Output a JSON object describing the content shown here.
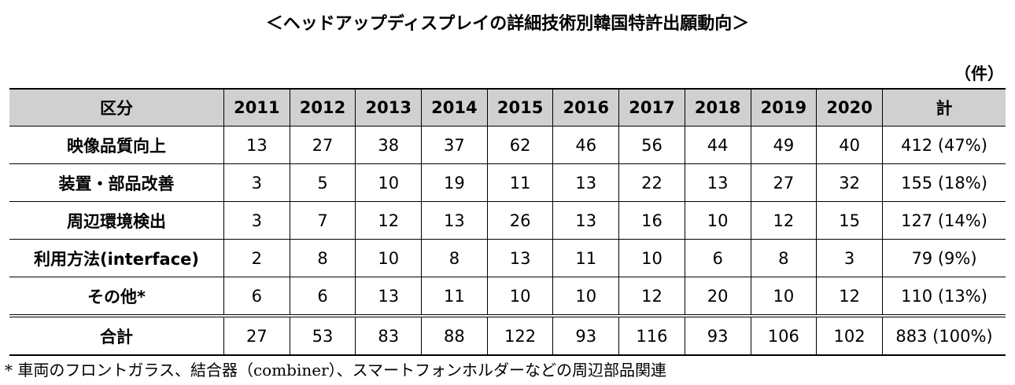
{
  "title": "＜ヘッドアップディスプレイの詳細技術別韓国特許出願動向＞",
  "unit": "（件）",
  "table": {
    "header": [
      "区分",
      "2011",
      "2012",
      "2013",
      "2014",
      "2015",
      "2016",
      "2017",
      "2018",
      "2019",
      "2020",
      "計"
    ],
    "rows": [
      [
        "映像品質向上",
        13,
        27,
        38,
        37,
        62,
        46,
        56,
        44,
        49,
        40,
        "412 (47%)"
      ],
      [
        "装置・部品改善",
        3,
        5,
        10,
        19,
        11,
        13,
        22,
        13,
        27,
        32,
        "155 (18%)"
      ],
      [
        "周辺環境検出",
        3,
        7,
        12,
        13,
        26,
        13,
        16,
        10,
        12,
        15,
        "127 (14%)"
      ],
      [
        "利用方法(interface)",
        2,
        8,
        10,
        8,
        13,
        11,
        10,
        6,
        8,
        3,
        "79 (9%)"
      ],
      [
        "その他*",
        6,
        6,
        13,
        11,
        10,
        10,
        12,
        20,
        10,
        12,
        "110 (13%)"
      ]
    ],
    "total": [
      "合計",
      27,
      53,
      83,
      88,
      122,
      93,
      116,
      93,
      106,
      102,
      "883 (100%)"
    ]
  },
  "footnote": "* 車両のフロントガラス、結合器（combiner）、スマートフォンホルダーなどの周辺部品関連"
}
